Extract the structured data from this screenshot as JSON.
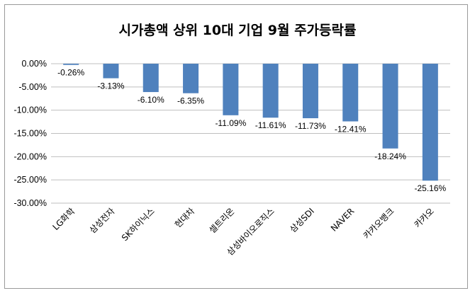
{
  "chart_data": {
    "type": "bar",
    "title": "시가총액 상위 10대 기업 9월 주가등락률",
    "xlabel": "",
    "ylabel": "",
    "categories": [
      "LG화학",
      "삼성전자",
      "SK하이닉스",
      "현대차",
      "셀트리온",
      "삼성바이오로직스",
      "삼성SDI",
      "NAVER",
      "카카오뱅크",
      "카카오"
    ],
    "values": [
      -0.26,
      -3.13,
      -6.1,
      -6.35,
      -11.09,
      -11.61,
      -11.73,
      -12.41,
      -18.24,
      -25.16
    ],
    "data_labels": [
      "-0.26%",
      "-3.13%",
      "-6.10%",
      "-6.35%",
      "-11.09%",
      "-11.61%",
      "-11.73%",
      "-12.41%",
      "-18.24%",
      "-25.16%"
    ],
    "ylim": [
      -30,
      0
    ],
    "yticks": [
      0,
      -5,
      -10,
      -15,
      -20,
      -25,
      -30
    ],
    "ytick_labels": [
      "0.00%",
      "-5.00%",
      "-10.00%",
      "-15.00%",
      "-20.00%",
      "-25.00%",
      "-30.00%"
    ],
    "grid": true,
    "legend": "none",
    "bar_color": "#4f81bd",
    "grid_color": "#bfbfbf"
  }
}
